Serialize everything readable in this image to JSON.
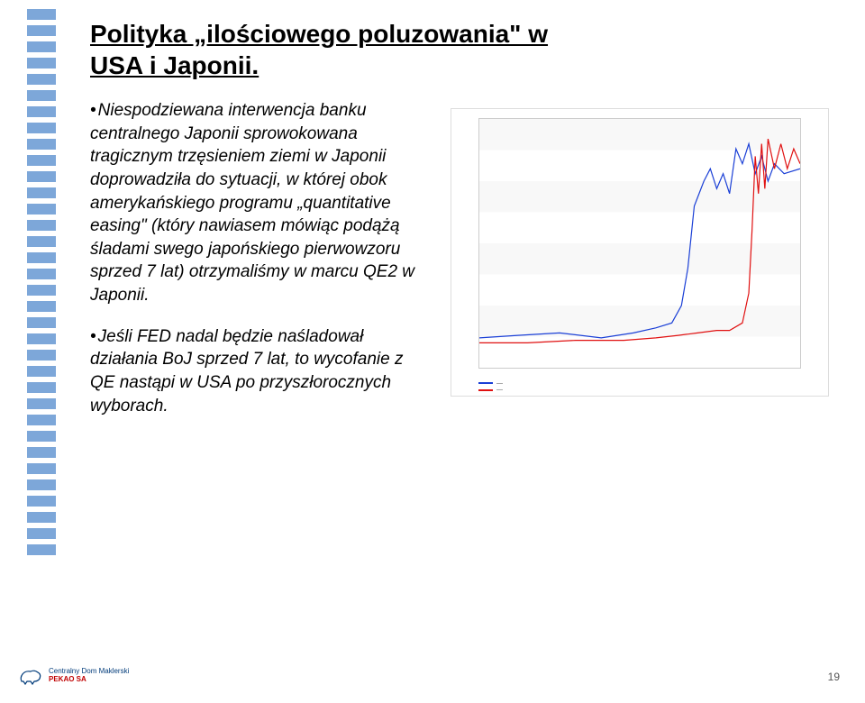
{
  "title": "Polityka „ilościowego poluzowania\" w USA i Japonii.",
  "bullets": [
    "Niespodziewana interwencja banku centralnego Japonii sprowokowana tragicznym trzęsieniem ziemi w Japonii doprowadziła do sytuacji, w której obok amerykańskiego programu „quantitative easing\" (który nawiasem mówiąc podążą śladami swego japońskiego pierwowzoru sprzed 7 lat) otrzymaliśmy w marcu QE2 w Japonii.",
    "Jeśli FED nadal będzie naśladował działania BoJ sprzed 7 lat, to wycofanie z QE nastąpi w USA po przyszłorocznych wyborach."
  ],
  "chart": {
    "series": [
      {
        "name": "series-1",
        "color": "#1a3fd6",
        "points": [
          [
            0,
            88
          ],
          [
            12,
            87
          ],
          [
            25,
            86
          ],
          [
            38,
            88
          ],
          [
            48,
            86
          ],
          [
            55,
            84
          ],
          [
            60,
            82
          ],
          [
            63,
            75
          ],
          [
            65,
            60
          ],
          [
            67,
            35
          ],
          [
            70,
            25
          ],
          [
            72,
            20
          ],
          [
            74,
            28
          ],
          [
            76,
            22
          ],
          [
            78,
            30
          ],
          [
            80,
            12
          ],
          [
            82,
            18
          ],
          [
            84,
            10
          ],
          [
            86,
            22
          ],
          [
            88,
            15
          ],
          [
            90,
            25
          ],
          [
            92,
            18
          ],
          [
            95,
            22
          ],
          [
            100,
            20
          ]
        ]
      },
      {
        "name": "series-2",
        "color": "#e01010",
        "points": [
          [
            0,
            90
          ],
          [
            15,
            90
          ],
          [
            30,
            89
          ],
          [
            45,
            89
          ],
          [
            55,
            88
          ],
          [
            62,
            87
          ],
          [
            68,
            86
          ],
          [
            74,
            85
          ],
          [
            78,
            85
          ],
          [
            82,
            82
          ],
          [
            84,
            70
          ],
          [
            85,
            45
          ],
          [
            86,
            15
          ],
          [
            87,
            30
          ],
          [
            88,
            10
          ],
          [
            89,
            28
          ],
          [
            90,
            8
          ],
          [
            92,
            20
          ],
          [
            94,
            10
          ],
          [
            96,
            20
          ],
          [
            98,
            12
          ],
          [
            100,
            18
          ]
        ]
      }
    ],
    "legend_items": [
      "—",
      "—"
    ],
    "background": "#ffffff",
    "grid_color": "#dddddd"
  },
  "footer": {
    "brand_line1": "Centralny Dom Maklerski",
    "brand_line2": "PEKAO SA"
  },
  "page_number": "19",
  "rail_count": 34,
  "rail_color": "#7da7d9"
}
